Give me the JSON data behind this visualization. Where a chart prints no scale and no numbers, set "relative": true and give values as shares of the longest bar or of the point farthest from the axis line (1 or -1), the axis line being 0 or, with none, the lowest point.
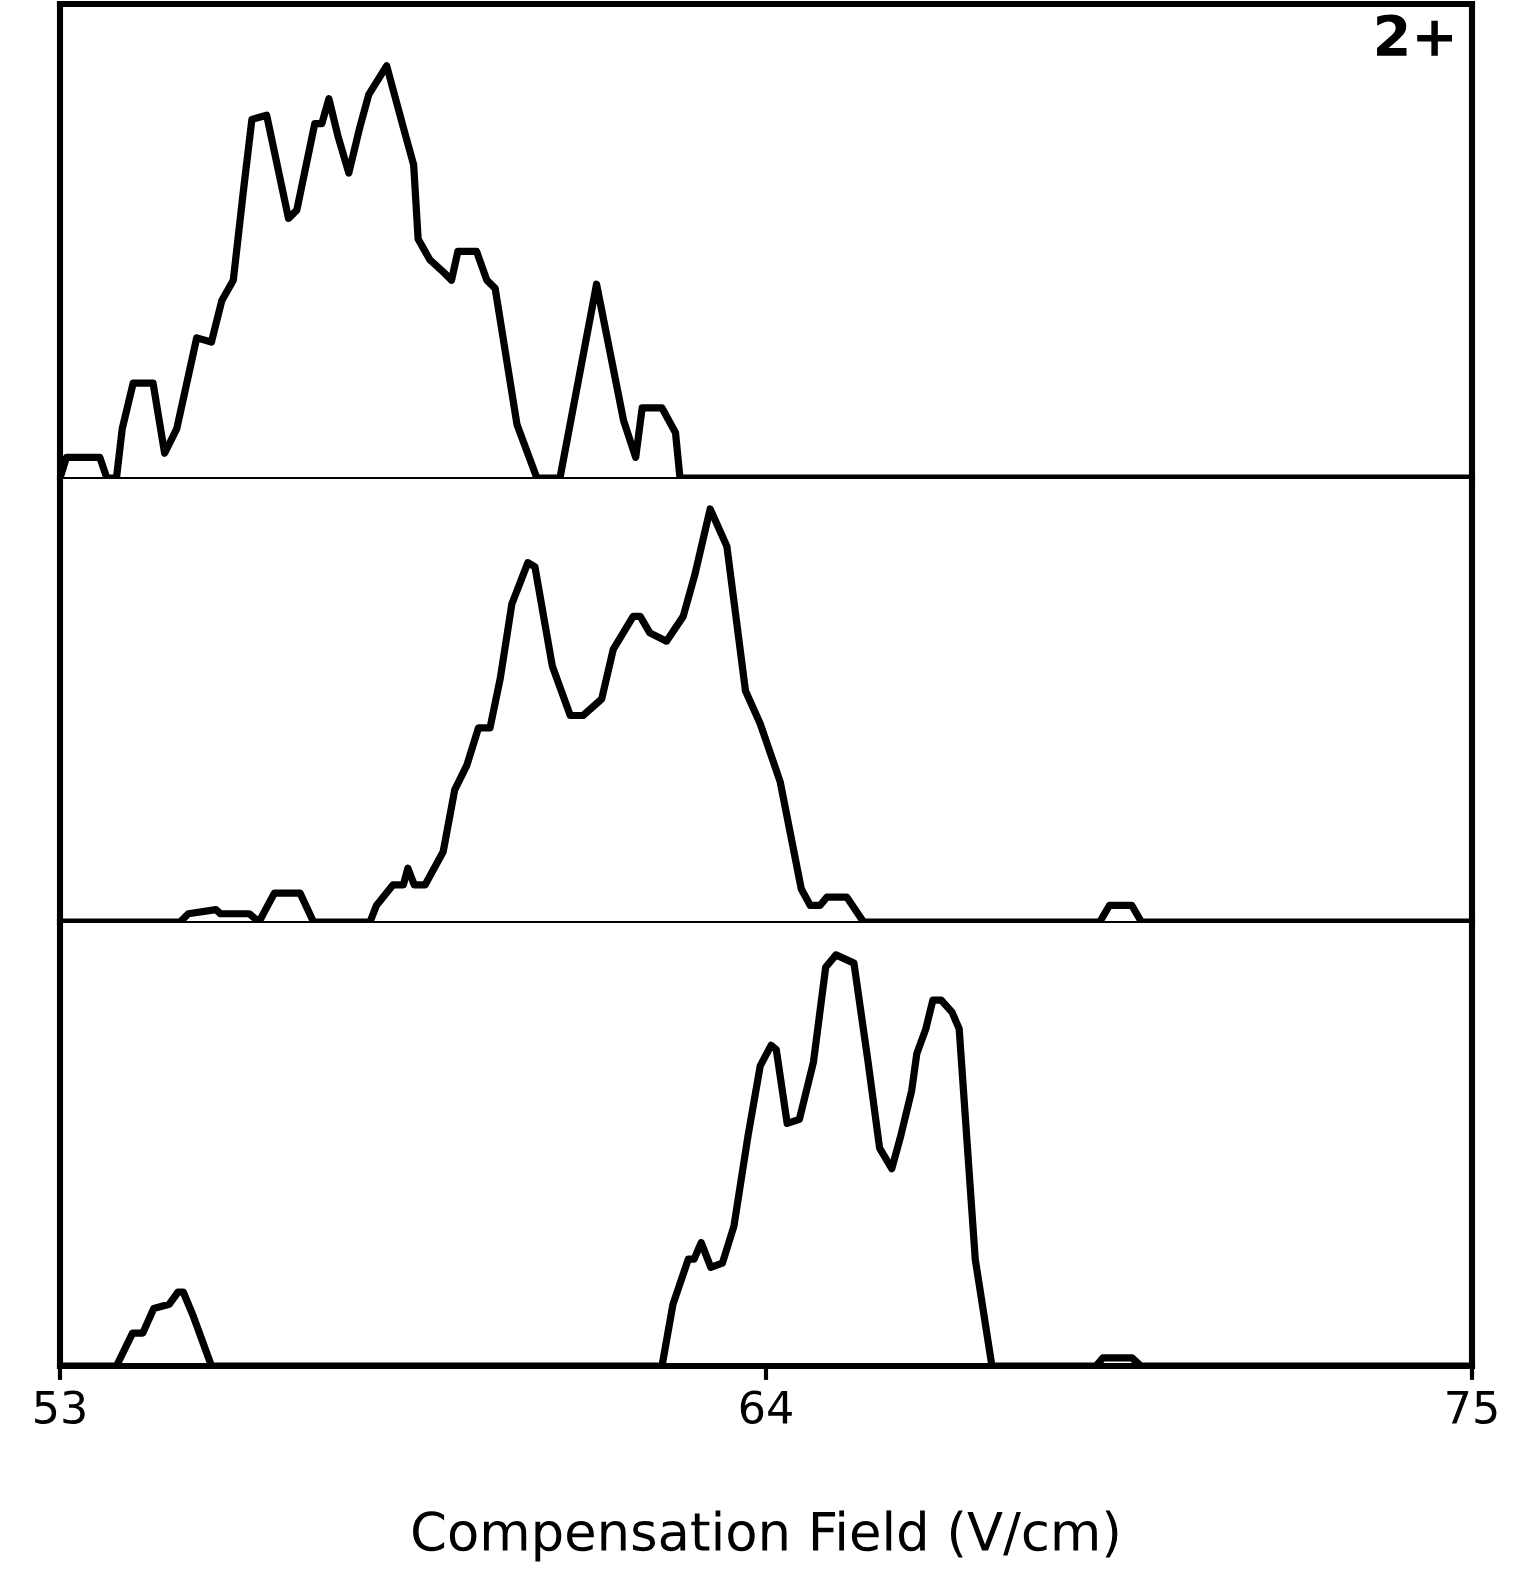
{
  "chart_data": [
    {
      "type": "line",
      "relative": true,
      "xlim": [
        53,
        75
      ],
      "tick_labels": false,
      "grid": false,
      "annotations": [
        "2+"
      ],
      "x": [
        53.0,
        53.1,
        53.62,
        53.73,
        53.88,
        53.97,
        54.14,
        54.45,
        54.63,
        54.82,
        55.13,
        55.36,
        55.52,
        55.7,
        55.86,
        55.99,
        56.22,
        56.56,
        56.69,
        56.97,
        57.08,
        57.19,
        57.33,
        57.5,
        57.67,
        57.81,
        58.09,
        58.35,
        58.51,
        58.58,
        58.76,
        58.97,
        59.1,
        59.2,
        59.49,
        59.65,
        59.78,
        60.12,
        60.43,
        60.79,
        61.36,
        61.78,
        61.97,
        62.07,
        62.38,
        62.59,
        62.66,
        75.0
      ],
      "series": [
        {
          "color": "#000000",
          "values": [
            0,
            0.05,
            0.05,
            0,
            0,
            0.12,
            0.23,
            0.23,
            0.06,
            0.12,
            0.34,
            0.33,
            0.43,
            0.48,
            0.7,
            0.87,
            0.88,
            0.63,
            0.65,
            0.86,
            0.86,
            0.92,
            0.83,
            0.74,
            0.85,
            0.93,
            1.0,
            0.85,
            0.76,
            0.58,
            0.53,
            0.5,
            0.48,
            0.55,
            0.55,
            0.48,
            0.46,
            0.13,
            0,
            0,
            0.47,
            0.14,
            0.05,
            0.17,
            0.17,
            0.11,
            0,
            0
          ]
        }
      ]
    },
    {
      "type": "line",
      "relative": true,
      "xlim": [
        53,
        75
      ],
      "tick_labels": false,
      "grid": false,
      "x": [
        53.0,
        54.87,
        55.0,
        55.43,
        55.5,
        55.95,
        56.1,
        56.34,
        56.6,
        56.74,
        56.95,
        57.83,
        57.93,
        58.19,
        58.35,
        58.42,
        58.52,
        58.69,
        58.97,
        59.15,
        59.34,
        59.52,
        59.7,
        59.86,
        60.04,
        60.29,
        60.4,
        60.67,
        60.95,
        61.15,
        61.44,
        61.62,
        61.93,
        62.04,
        62.19,
        62.45,
        62.71,
        62.89,
        63.13,
        63.39,
        63.68,
        63.91,
        64.22,
        64.55,
        64.69,
        64.84,
        64.95,
        65.26,
        65.52,
        69.2,
        69.35,
        69.7,
        69.85,
        75.0
      ],
      "series": [
        {
          "color": "#000000",
          "values": [
            0,
            0,
            0.02,
            0.03,
            0.02,
            0.02,
            0,
            0.07,
            0.07,
            0.07,
            0,
            0,
            0.04,
            0.09,
            0.09,
            0.13,
            0.09,
            0.09,
            0.17,
            0.32,
            0.38,
            0.47,
            0.47,
            0.59,
            0.77,
            0.87,
            0.86,
            0.62,
            0.5,
            0.5,
            0.54,
            0.66,
            0.74,
            0.74,
            0.7,
            0.68,
            0.74,
            0.84,
            1.0,
            0.91,
            0.56,
            0.48,
            0.34,
            0.08,
            0.04,
            0.04,
            0.06,
            0.06,
            0,
            0,
            0.04,
            0.04,
            0,
            0
          ]
        }
      ]
    },
    {
      "type": "line",
      "relative": true,
      "xlim": [
        53,
        75
      ],
      "xticks": [
        53,
        64,
        75
      ],
      "tick_labels": "x",
      "grid": false,
      "xlabel": "Compensation Field (V/cm)",
      "x": [
        53.0,
        53.88,
        54.13,
        54.29,
        54.46,
        54.7,
        54.84,
        54.92,
        55.08,
        55.36,
        62.38,
        62.55,
        62.79,
        62.88,
        62.99,
        63.14,
        63.32,
        63.5,
        63.72,
        63.91,
        64.08,
        64.16,
        64.33,
        64.52,
        64.74,
        64.93,
        65.09,
        65.37,
        65.59,
        65.77,
        65.96,
        66.1,
        66.27,
        66.35,
        66.49,
        66.6,
        66.73,
        66.9,
        67.01,
        67.26,
        67.52,
        69.14,
        69.25,
        69.7,
        69.84,
        75.0
      ],
      "series": [
        {
          "color": "#000000",
          "values": [
            0,
            0,
            0.08,
            0.08,
            0.14,
            0.15,
            0.18,
            0.18,
            0.12,
            0,
            0,
            0.15,
            0.26,
            0.26,
            0.3,
            0.24,
            0.25,
            0.34,
            0.56,
            0.73,
            0.78,
            0.77,
            0.59,
            0.6,
            0.74,
            0.97,
            1.0,
            0.98,
            0.74,
            0.53,
            0.48,
            0.56,
            0.67,
            0.76,
            0.82,
            0.89,
            0.89,
            0.86,
            0.82,
            0.26,
            0,
            0,
            0.02,
            0.02,
            0,
            0
          ]
        }
      ]
    }
  ]
}
